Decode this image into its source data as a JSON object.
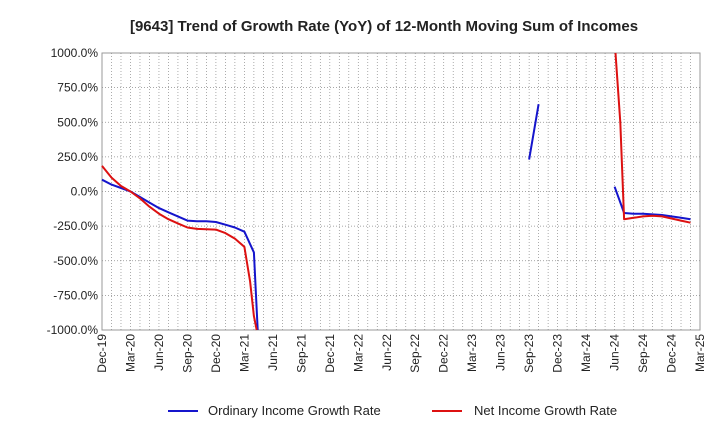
{
  "chart_data": {
    "type": "line",
    "title": "[9643]  Trend of Growth Rate (YoY) of 12-Month Moving Sum of Incomes",
    "ylim": [
      -1000,
      1000
    ],
    "y_ticks": [
      {
        "value": 1000,
        "label": "1000.0%"
      },
      {
        "value": 750,
        "label": "750.0%"
      },
      {
        "value": 500,
        "label": "500.0%"
      },
      {
        "value": 250,
        "label": "250.0%"
      },
      {
        "value": 0,
        "label": "0.0%"
      },
      {
        "value": -250,
        "label": "-250.0%"
      },
      {
        "value": -500,
        "label": "-500.0%"
      },
      {
        "value": -750,
        "label": "-750.0%"
      },
      {
        "value": -1000,
        "label": "-1000.0%"
      }
    ],
    "x_ticks": [
      "Dec-19",
      "Mar-20",
      "Jun-20",
      "Sep-20",
      "Dec-20",
      "Mar-21",
      "Jun-21",
      "Sep-21",
      "Dec-21",
      "Mar-22",
      "Jun-22",
      "Sep-22",
      "Dec-22",
      "Mar-23",
      "Jun-23",
      "Sep-23",
      "Dec-23",
      "Mar-24",
      "Jun-24",
      "Sep-24",
      "Dec-24",
      "Mar-25"
    ],
    "x_months_total": 63,
    "grid": "dotted",
    "legend_position": "bottom",
    "series": [
      {
        "name": "Ordinary Income Growth Rate",
        "color": "#1515cc",
        "segments": [
          [
            [
              0,
              85
            ],
            [
              1,
              50
            ],
            [
              2,
              25
            ],
            [
              3,
              0
            ],
            [
              4,
              -40
            ],
            [
              5,
              -80
            ],
            [
              6,
              -120
            ],
            [
              7,
              -150
            ],
            [
              8,
              -180
            ],
            [
              9,
              -210
            ],
            [
              10,
              -215
            ],
            [
              11,
              -215
            ],
            [
              12,
              -220
            ],
            [
              13,
              -240
            ],
            [
              14,
              -260
            ],
            [
              15,
              -290
            ],
            [
              16,
              -440
            ],
            [
              16.4,
              -1000
            ]
          ],
          [
            [
              45,
              230
            ],
            [
              46,
              630
            ]
          ],
          [
            [
              54,
              35
            ],
            [
              55,
              -155
            ],
            [
              56,
              -160
            ],
            [
              57,
              -160
            ],
            [
              58,
              -165
            ],
            [
              59,
              -170
            ],
            [
              60,
              -180
            ],
            [
              61,
              -190
            ],
            [
              62,
              -200
            ]
          ]
        ]
      },
      {
        "name": "Net Income Growth Rate",
        "color": "#dd1111",
        "segments": [
          [
            [
              0,
              185
            ],
            [
              1,
              100
            ],
            [
              2,
              40
            ],
            [
              3,
              0
            ],
            [
              4,
              -50
            ],
            [
              5,
              -110
            ],
            [
              6,
              -160
            ],
            [
              7,
              -200
            ],
            [
              8,
              -230
            ],
            [
              9,
              -260
            ],
            [
              10,
              -270
            ],
            [
              11,
              -272
            ],
            [
              12,
              -275
            ],
            [
              13,
              -300
            ],
            [
              14,
              -340
            ],
            [
              15,
              -400
            ],
            [
              15.6,
              -650
            ],
            [
              16,
              -900
            ],
            [
              16.3,
              -1000
            ]
          ],
          [
            [
              54.1,
              1000
            ],
            [
              54.6,
              500
            ],
            [
              55,
              -200
            ],
            [
              56,
              -190
            ],
            [
              57,
              -180
            ],
            [
              58,
              -175
            ],
            [
              59,
              -180
            ],
            [
              60,
              -195
            ],
            [
              61,
              -210
            ],
            [
              62,
              -225
            ]
          ]
        ]
      }
    ]
  }
}
